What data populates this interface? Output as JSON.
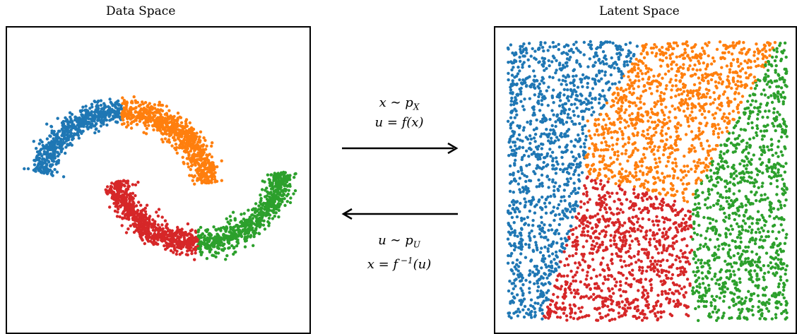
{
  "left_panel": {
    "title": "Data Space"
  },
  "right_panel": {
    "title": "Latent Space"
  },
  "forward": {
    "line1": "x ∼ p",
    "line1_sub": "X",
    "line2": "u = f(x)"
  },
  "inverse": {
    "line1": "u ∼ p",
    "line1_sub": "U",
    "line2_pre": "x = f",
    "line2_sup": " −1",
    "line2_post": "(u)"
  },
  "colors": {
    "blue": "#1f77b4",
    "orange": "#ff7f0e",
    "red": "#d62728",
    "green": "#2ca02c"
  }
}
